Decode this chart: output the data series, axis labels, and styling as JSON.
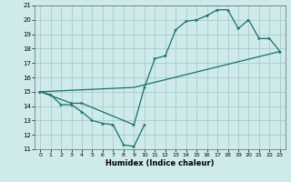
{
  "xlabel": "Humidex (Indice chaleur)",
  "xlim": [
    -0.5,
    23.5
  ],
  "ylim": [
    11,
    21
  ],
  "xticks": [
    0,
    1,
    2,
    3,
    4,
    5,
    6,
    7,
    8,
    9,
    10,
    11,
    12,
    13,
    14,
    15,
    16,
    17,
    18,
    19,
    20,
    21,
    22,
    23
  ],
  "yticks": [
    11,
    12,
    13,
    14,
    15,
    16,
    17,
    18,
    19,
    20,
    21
  ],
  "bg_color": "#ceeaea",
  "grid_color": "#aacccc",
  "line_color": "#1a6e6e",
  "line1_x": [
    0,
    1,
    2,
    3,
    4,
    5,
    6,
    7,
    8,
    9,
    10
  ],
  "line1_y": [
    15.0,
    14.8,
    14.1,
    14.1,
    13.6,
    13.0,
    12.8,
    12.7,
    11.3,
    11.2,
    12.7
  ],
  "line2_x": [
    0,
    3,
    4,
    9,
    10,
    11,
    12,
    13,
    14,
    15,
    16,
    17,
    18,
    19,
    20,
    21,
    22,
    23
  ],
  "line2_y": [
    15.0,
    14.2,
    14.2,
    12.7,
    15.3,
    17.3,
    17.5,
    19.3,
    19.9,
    20.0,
    20.3,
    20.7,
    20.7,
    19.4,
    20.0,
    18.7,
    18.7,
    17.8
  ],
  "line3_x": [
    0,
    9,
    23
  ],
  "line3_y": [
    15.0,
    15.3,
    17.8
  ]
}
